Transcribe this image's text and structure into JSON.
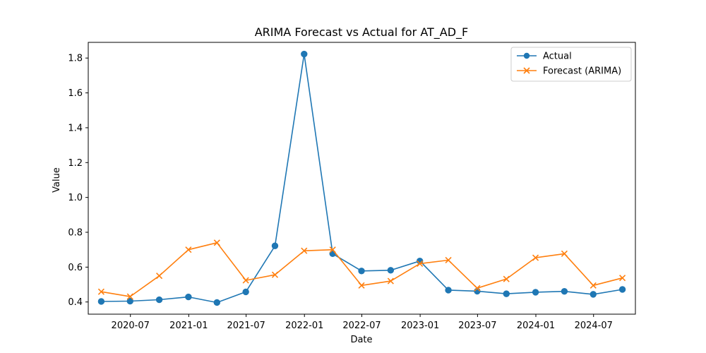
{
  "chart_data": {
    "type": "line",
    "title": "ARIMA Forecast vs Actual for AT_AD_F",
    "xlabel": "Date",
    "ylabel": "Value",
    "x": [
      "2020-03-31",
      "2020-06-30",
      "2020-09-30",
      "2020-12-31",
      "2021-03-31",
      "2021-06-30",
      "2021-09-30",
      "2021-12-31",
      "2022-03-31",
      "2022-06-30",
      "2022-09-30",
      "2022-12-31",
      "2023-03-31",
      "2023-06-30",
      "2023-09-30",
      "2023-12-31",
      "2024-03-31",
      "2024-06-30",
      "2024-09-30"
    ],
    "x_ticks": [
      "2020-07",
      "2021-01",
      "2021-07",
      "2022-01",
      "2022-07",
      "2023-01",
      "2023-07",
      "2024-01",
      "2024-07"
    ],
    "y_ticks": [
      "0.4",
      "0.6",
      "0.8",
      "1.0",
      "1.2",
      "1.4",
      "1.6",
      "1.8"
    ],
    "ylim": [
      0.33,
      1.89
    ],
    "xlim": [
      "2020-02-19",
      "2024-11-10"
    ],
    "grid": false,
    "legend_position": "upper right",
    "series": [
      {
        "name": "Actual",
        "color": "#1f77b4",
        "marker": "circle",
        "values": [
          0.403,
          0.405,
          0.413,
          0.429,
          0.397,
          0.458,
          0.722,
          1.823,
          0.677,
          0.578,
          0.582,
          0.635,
          0.468,
          0.462,
          0.447,
          0.456,
          0.461,
          0.444,
          0.472
        ]
      },
      {
        "name": "Forecast (ARIMA)",
        "color": "#ff7f0e",
        "marker": "x",
        "values": [
          0.459,
          0.431,
          0.55,
          0.7,
          0.74,
          0.524,
          0.556,
          0.694,
          0.7,
          0.495,
          0.52,
          0.62,
          0.64,
          0.479,
          0.532,
          0.654,
          0.677,
          0.495,
          0.538
        ]
      }
    ]
  }
}
